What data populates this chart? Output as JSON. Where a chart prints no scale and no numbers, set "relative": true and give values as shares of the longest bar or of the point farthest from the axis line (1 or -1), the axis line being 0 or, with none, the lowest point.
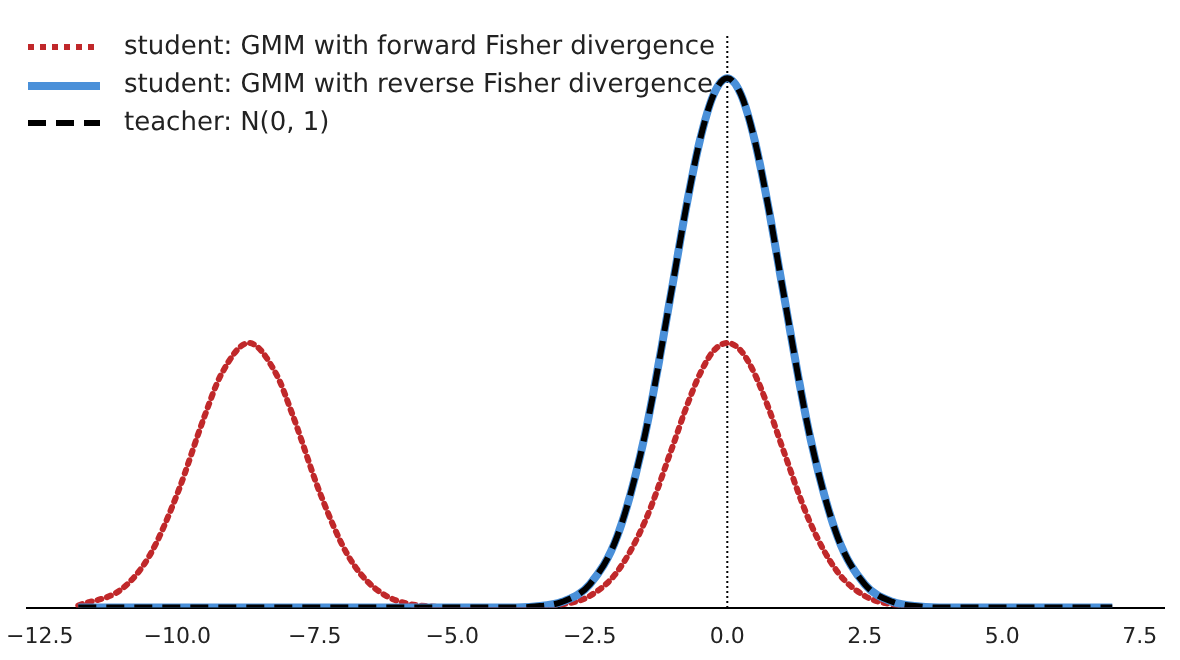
{
  "chart_data": {
    "type": "line",
    "relative": true,
    "xlim": [
      -12.74,
      7.94
    ],
    "xticks": [
      {
        "value": -12.5,
        "label": "−12.5"
      },
      {
        "value": -10,
        "label": "−10.0"
      },
      {
        "value": -7.5,
        "label": "−7.5"
      },
      {
        "value": -5,
        "label": "−5.0"
      },
      {
        "value": -2.5,
        "label": "−2.5"
      },
      {
        "value": 0,
        "label": "0.0"
      },
      {
        "value": 2.5,
        "label": "2.5"
      },
      {
        "value": 5,
        "label": "5.0"
      },
      {
        "value": 7.5,
        "label": "7.5"
      }
    ],
    "legend": "top left",
    "grid": false,
    "marker": "none",
    "ref_lines": [
      {
        "axis": "x",
        "value": 0,
        "color": "#000000",
        "line_style": "dotted"
      }
    ],
    "series": [
      {
        "name": "student: GMM with forward Fisher divergence",
        "color": "#c0282a",
        "line_style": "dotted",
        "x": [
          -11.8,
          -11,
          -10.5,
          -10,
          -9.5,
          -9.2,
          -8.7,
          -8.2,
          -7.9,
          -7.4,
          -6.9,
          -6.4,
          -5.6,
          -4.5,
          -3.5,
          -3,
          -2.5,
          -2,
          -1.5,
          -1,
          -0.75,
          -0.5,
          -0.25,
          0,
          0.25,
          0.5,
          0.75,
          1,
          1.5,
          2,
          2.5,
          3,
          3.5
        ],
        "values": [
          0.004,
          0.036,
          0.099,
          0.215,
          0.363,
          0.441,
          0.5,
          0.441,
          0.363,
          0.215,
          0.099,
          0.036,
          0.004,
          0,
          0.001,
          0.006,
          0.022,
          0.068,
          0.162,
          0.303,
          0.377,
          0.441,
          0.485,
          0.5,
          0.485,
          0.441,
          0.377,
          0.303,
          0.162,
          0.068,
          0.022,
          0.006,
          0.001
        ]
      },
      {
        "name": "student: GMM with reverse Fisher divergence",
        "color": "#4a90d9",
        "line_style": "solid",
        "x": [
          -11.8,
          -5,
          -4,
          -3.5,
          -3,
          -2.5,
          -2,
          -1.5,
          -1,
          -0.75,
          -0.5,
          -0.25,
          0,
          0.25,
          0.5,
          0.75,
          1,
          1.5,
          2,
          2.5,
          3,
          3.5,
          4,
          5,
          7
        ],
        "values": [
          0,
          0,
          0,
          0.002,
          0.011,
          0.044,
          0.135,
          0.325,
          0.607,
          0.755,
          0.882,
          0.969,
          1,
          0.969,
          0.882,
          0.755,
          0.607,
          0.325,
          0.135,
          0.044,
          0.011,
          0.002,
          0,
          0,
          0
        ]
      },
      {
        "name": "teacher: N(0, 1)",
        "color": "#000000",
        "line_style": "dashed",
        "x": [
          -11.8,
          -5,
          -4,
          -3.5,
          -3,
          -2.5,
          -2,
          -1.5,
          -1,
          -0.75,
          -0.5,
          -0.25,
          0,
          0.25,
          0.5,
          0.75,
          1,
          1.5,
          2,
          2.5,
          3,
          3.5,
          4,
          5,
          7
        ],
        "values": [
          0,
          0,
          0,
          0.002,
          0.011,
          0.044,
          0.135,
          0.325,
          0.607,
          0.755,
          0.882,
          0.969,
          1,
          0.969,
          0.882,
          0.755,
          0.607,
          0.325,
          0.135,
          0.044,
          0.011,
          0.002,
          0,
          0,
          0
        ]
      }
    ]
  }
}
